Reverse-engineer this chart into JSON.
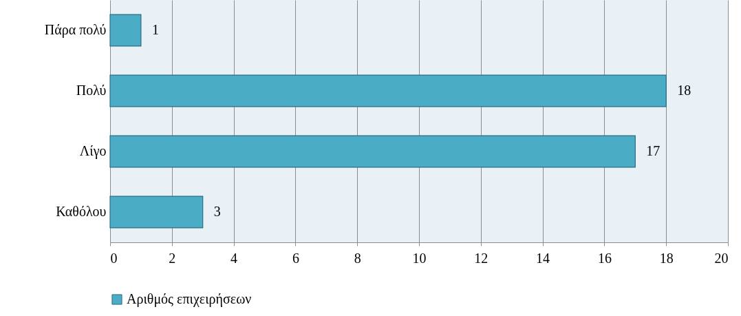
{
  "chart_data": {
    "type": "bar",
    "orientation": "horizontal",
    "categories": [
      "Πάρα πολύ",
      "Πολύ",
      "Λίγο",
      "Καθόλου"
    ],
    "series": [
      {
        "name": "Αριθμός επιχειρήσεων",
        "color": "#4bacc6",
        "values": [
          1,
          18,
          17,
          3
        ]
      }
    ],
    "xlim": [
      0,
      20
    ],
    "xticks": [
      0,
      2,
      4,
      6,
      8,
      10,
      12,
      14,
      16,
      18,
      20
    ],
    "grid": "x",
    "legend": "bottom",
    "data_labels": true
  }
}
